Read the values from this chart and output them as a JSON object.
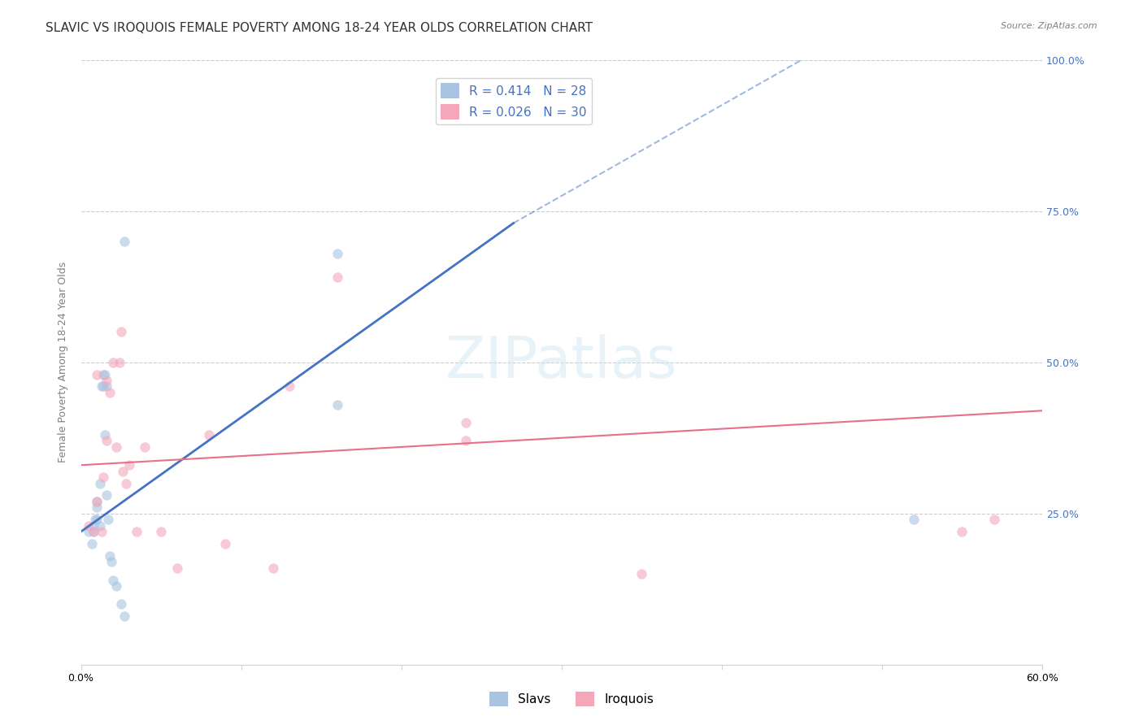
{
  "title": "SLAVIC VS IROQUOIS FEMALE POVERTY AMONG 18-24 YEAR OLDS CORRELATION CHART",
  "source": "Source: ZipAtlas.com",
  "xlabel": "",
  "ylabel": "Female Poverty Among 18-24 Year Olds",
  "xlim": [
    0.0,
    0.6
  ],
  "ylim": [
    0.0,
    1.0
  ],
  "xticks": [
    0.0,
    0.1,
    0.2,
    0.3,
    0.4,
    0.5,
    0.6
  ],
  "xticklabels": [
    "0.0%",
    "",
    "",
    "",
    "",
    "",
    "60.0%"
  ],
  "yticks_right": [
    0.0,
    0.25,
    0.5,
    0.75,
    1.0
  ],
  "yticklabels_right": [
    "",
    "25.0%",
    "50.0%",
    "75.0%",
    "100.0%"
  ],
  "slavs_color": "#a8c4e0",
  "iroquois_color": "#f4a7b9",
  "slavs_line_color": "#4472c4",
  "iroquois_line_color": "#e8708a",
  "R_slavs": 0.414,
  "N_slavs": 28,
  "R_iroquois": 0.026,
  "N_iroquois": 30,
  "legend_color": "#4472c4",
  "watermark": "ZIPatlas",
  "slavs_x": [
    0.005,
    0.007,
    0.008,
    0.008,
    0.009,
    0.01,
    0.01,
    0.01,
    0.012,
    0.012,
    0.013,
    0.014,
    0.014,
    0.015,
    0.015,
    0.016,
    0.016,
    0.017,
    0.018,
    0.019,
    0.02,
    0.022,
    0.025,
    0.027,
    0.027,
    0.16,
    0.16,
    0.52
  ],
  "slavs_y": [
    0.22,
    0.2,
    0.23,
    0.22,
    0.24,
    0.24,
    0.26,
    0.27,
    0.23,
    0.3,
    0.46,
    0.48,
    0.46,
    0.48,
    0.38,
    0.28,
    0.46,
    0.24,
    0.18,
    0.17,
    0.14,
    0.13,
    0.1,
    0.08,
    0.7,
    0.68,
    0.43,
    0.24
  ],
  "iroquois_x": [
    0.005,
    0.008,
    0.01,
    0.01,
    0.013,
    0.014,
    0.016,
    0.016,
    0.018,
    0.02,
    0.022,
    0.024,
    0.025,
    0.026,
    0.028,
    0.03,
    0.035,
    0.04,
    0.05,
    0.06,
    0.08,
    0.09,
    0.12,
    0.13,
    0.16,
    0.24,
    0.24,
    0.35,
    0.55,
    0.57
  ],
  "iroquois_y": [
    0.23,
    0.22,
    0.27,
    0.48,
    0.22,
    0.31,
    0.37,
    0.47,
    0.45,
    0.5,
    0.36,
    0.5,
    0.55,
    0.32,
    0.3,
    0.33,
    0.22,
    0.36,
    0.22,
    0.16,
    0.38,
    0.2,
    0.16,
    0.46,
    0.64,
    0.37,
    0.4,
    0.15,
    0.22,
    0.24
  ],
  "slavs_trendline_x": [
    0.0,
    0.27
  ],
  "slavs_trendline_y": [
    0.22,
    0.73
  ],
  "iroquois_trendline_x": [
    0.0,
    0.6
  ],
  "iroquois_trendline_y": [
    0.33,
    0.42
  ],
  "background_color": "#ffffff",
  "grid_color": "#cccccc",
  "title_fontsize": 11,
  "axis_label_fontsize": 9,
  "tick_fontsize": 9,
  "marker_size": 80,
  "marker_alpha": 0.6
}
